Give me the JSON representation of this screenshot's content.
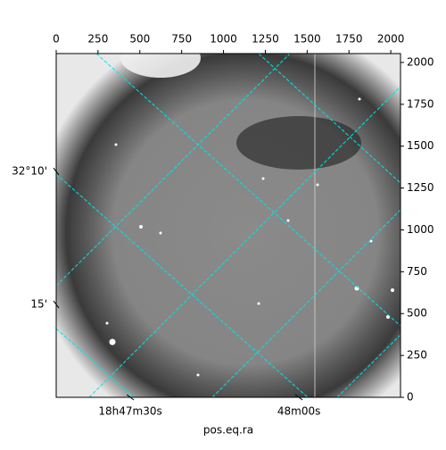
{
  "chart_data": {
    "type": "image",
    "xlabel": "pos.eq.ra",
    "xlim": [
      0,
      2058
    ],
    "ylim": [
      0,
      2053
    ],
    "xticks": [
      0,
      250,
      500,
      750,
      1000,
      1250,
      1500,
      1750,
      2000
    ],
    "yticks": [
      0,
      250,
      500,
      750,
      1000,
      1250,
      1500,
      1750,
      2000
    ],
    "ra_ticks": [
      {
        "value": 443,
        "label": "18h47m30s"
      },
      {
        "value": 1451,
        "label": "48m00s"
      }
    ],
    "dec_ticks": [
      {
        "value": 1349,
        "label": "32°10'"
      },
      {
        "value": 555,
        "label": "15'"
      }
    ],
    "grid_color": "#00e5e5"
  }
}
